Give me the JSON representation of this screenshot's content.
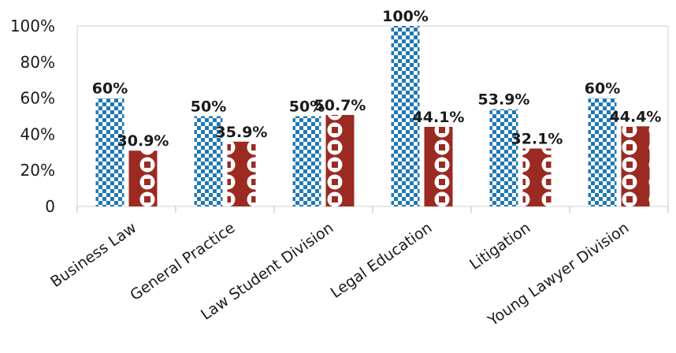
{
  "chart_data": {
    "type": "bar",
    "categories": [
      "Business Law",
      "General Practice",
      "Law Student Division",
      "Legal Education",
      "Litigation",
      "Young Lawyer Division"
    ],
    "series": [
      {
        "values": [
          60,
          50,
          50,
          100,
          53.9,
          60
        ],
        "labels": [
          "60%",
          "50%",
          "50%",
          "100%",
          "53.9%",
          "60%"
        ],
        "color": "#1f78b4",
        "pattern": "checker"
      },
      {
        "values": [
          30.9,
          35.9,
          50.7,
          44.1,
          32.1,
          44.4
        ],
        "labels": [
          "30.9%",
          "35.9%",
          "50.7%",
          "44.1%",
          "32.1%",
          "44.4%"
        ],
        "color": "#9b2a22",
        "pattern": "circles"
      }
    ],
    "y_ticks": [
      "0",
      "20%",
      "40%",
      "60%",
      "80%",
      "100%"
    ],
    "ylim": [
      0,
      100
    ],
    "legend": "none"
  }
}
